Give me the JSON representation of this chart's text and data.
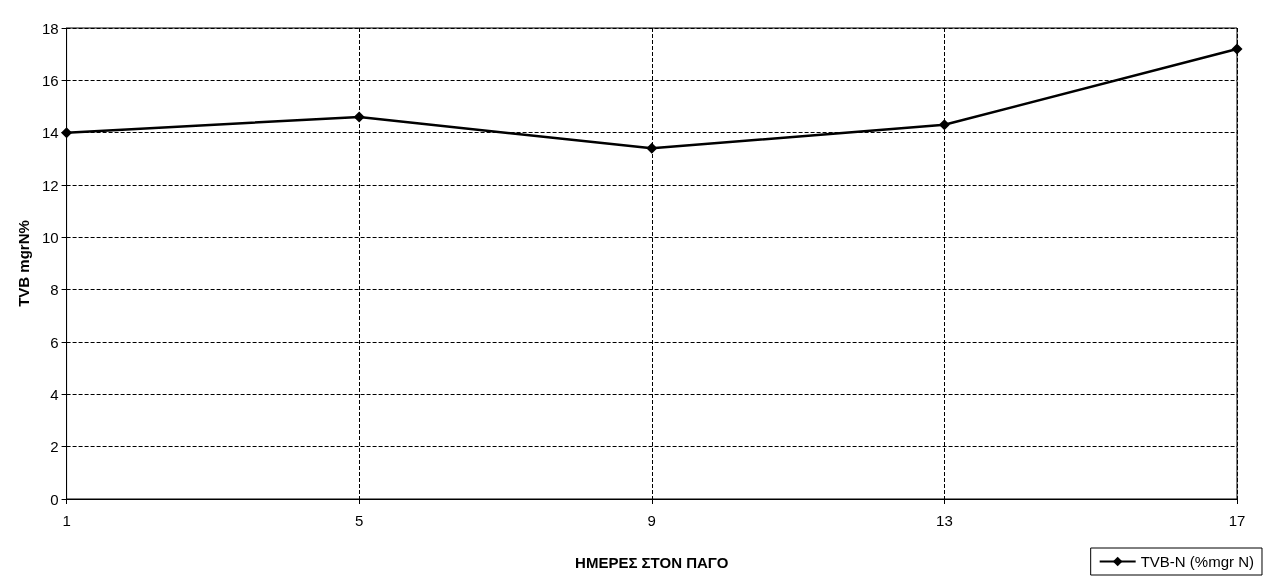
{
  "chart_data": {
    "type": "line",
    "xlabel": "ΗΜΕΡΕΣ ΣΤΟΝ ΠΑΓΟ",
    "ylabel": "TVB mgrN%",
    "categories": [
      "1",
      "5",
      "9",
      "13",
      "17"
    ],
    "series": [
      {
        "name": "TVB-N (%mgr N)",
        "color": "#000000",
        "values": [
          14.0,
          14.6,
          13.4,
          14.3,
          17.2
        ]
      }
    ],
    "ylim": [
      0,
      18
    ],
    "yticks": [
      0,
      2,
      4,
      6,
      8,
      10,
      12,
      14,
      16,
      18
    ],
    "grid": true,
    "legend": "bottom right",
    "marker": "diamond",
    "line_style": "solid"
  }
}
